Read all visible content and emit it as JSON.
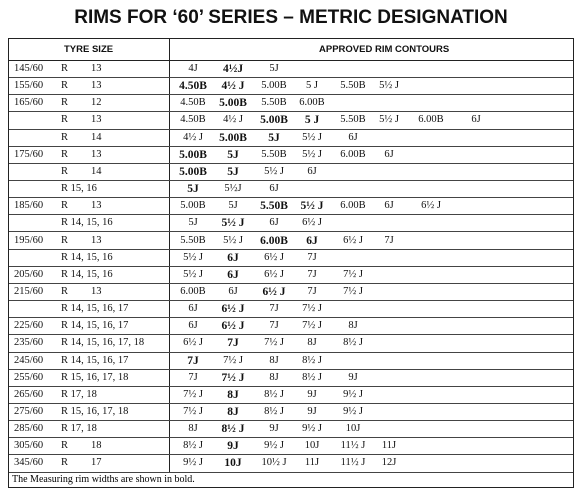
{
  "title": "RIMS FOR ‘60’ SERIES – METRIC DESIGNATION",
  "header": {
    "tyre_size": "TYRE SIZE",
    "rim_contours": "APPROVED RIM CONTOURS"
  },
  "rows": [
    {
      "size": "145/60",
      "r": "R",
      "dia": "13",
      "rims": [
        {
          "t": "4J",
          "b": false
        },
        {
          "t": "4½J",
          "b": true
        },
        {
          "t": "5J",
          "b": false
        }
      ]
    },
    {
      "size": "155/60",
      "r": "R",
      "dia": "13",
      "rims": [
        {
          "t": "4.50B",
          "b": true
        },
        {
          "t": "4½ J",
          "b": true
        },
        {
          "t": "5.00B",
          "b": false
        },
        {
          "t": "5 J",
          "b": false
        },
        {
          "t": "5.50B",
          "b": false
        },
        {
          "t": "5½ J",
          "b": false
        }
      ]
    },
    {
      "size": "165/60",
      "r": "R",
      "dia": "12",
      "rims": [
        {
          "t": "4.50B",
          "b": false
        },
        {
          "t": "5.00B",
          "b": true
        },
        {
          "t": "5.50B",
          "b": false
        },
        {
          "t": "6.00B",
          "b": false
        }
      ]
    },
    {
      "size": "",
      "r": "R",
      "dia": "13",
      "rims": [
        {
          "t": "4.50B",
          "b": false
        },
        {
          "t": "4½ J",
          "b": false
        },
        {
          "t": "5.00B",
          "b": true
        },
        {
          "t": "5 J",
          "b": true
        },
        {
          "t": "5.50B",
          "b": false
        },
        {
          "t": "5½ J",
          "b": false
        },
        {
          "t": "6.00B",
          "b": false
        },
        {
          "t": "6J",
          "b": false
        }
      ]
    },
    {
      "size": "",
      "r": "R",
      "dia": "14",
      "rims": [
        {
          "t": "4½ J",
          "b": false
        },
        {
          "t": "5.00B",
          "b": true
        },
        {
          "t": "5J",
          "b": true
        },
        {
          "t": "5½ J",
          "b": false
        },
        {
          "t": "6J",
          "b": false
        }
      ]
    },
    {
      "size": "175/60",
      "r": "R",
      "dia": "13",
      "rims": [
        {
          "t": "5.00B",
          "b": true
        },
        {
          "t": "5J",
          "b": true
        },
        {
          "t": "5.50B",
          "b": false
        },
        {
          "t": "5½ J",
          "b": false
        },
        {
          "t": "6.00B",
          "b": false
        },
        {
          "t": "6J",
          "b": false
        }
      ]
    },
    {
      "size": "",
      "r": "R",
      "dia": "14",
      "rims": [
        {
          "t": "5.00B",
          "b": true
        },
        {
          "t": "5J",
          "b": true
        },
        {
          "t": "5½ J",
          "b": false
        },
        {
          "t": "6J",
          "b": false
        }
      ]
    },
    {
      "size": "",
      "r": "R 15, 16",
      "dia": "",
      "rims": [
        {
          "t": "5J",
          "b": true
        },
        {
          "t": "5½J",
          "b": false
        },
        {
          "t": "6J",
          "b": false
        }
      ]
    },
    {
      "size": "185/60",
      "r": "R",
      "dia": "13",
      "rims": [
        {
          "t": "5.00B",
          "b": false
        },
        {
          "t": "5J",
          "b": false
        },
        {
          "t": "5.50B",
          "b": true
        },
        {
          "t": "5½ J",
          "b": true
        },
        {
          "t": "6.00B",
          "b": false
        },
        {
          "t": "6J",
          "b": false
        },
        {
          "t": "6½ J",
          "b": false
        }
      ]
    },
    {
      "size": "",
      "r": "R 14, 15, 16",
      "dia": "",
      "rims": [
        {
          "t": "5J",
          "b": false
        },
        {
          "t": "5½ J",
          "b": true
        },
        {
          "t": "6J",
          "b": false
        },
        {
          "t": "6½ J",
          "b": false
        }
      ]
    },
    {
      "size": "195/60",
      "r": "R",
      "dia": "13",
      "rims": [
        {
          "t": "5.50B",
          "b": false
        },
        {
          "t": "5½ J",
          "b": false
        },
        {
          "t": "6.00B",
          "b": true
        },
        {
          "t": "6J",
          "b": true
        },
        {
          "t": "6½ J",
          "b": false
        },
        {
          "t": "7J",
          "b": false
        }
      ]
    },
    {
      "size": "",
      "r": "R 14, 15, 16",
      "dia": "",
      "rims": [
        {
          "t": "5½ J",
          "b": false
        },
        {
          "t": "6J",
          "b": true
        },
        {
          "t": "6½ J",
          "b": false
        },
        {
          "t": "7J",
          "b": false
        }
      ]
    },
    {
      "size": "205/60",
      "r": "R 14, 15, 16",
      "dia": "",
      "rims": [
        {
          "t": "5½ J",
          "b": false
        },
        {
          "t": "6J",
          "b": true
        },
        {
          "t": "6½ J",
          "b": false
        },
        {
          "t": "7J",
          "b": false
        },
        {
          "t": "7½ J",
          "b": false
        }
      ]
    },
    {
      "size": "215/60",
      "r": "R",
      "dia": "13",
      "rims": [
        {
          "t": "6.00B",
          "b": false
        },
        {
          "t": "6J",
          "b": false
        },
        {
          "t": "6½ J",
          "b": true
        },
        {
          "t": "7J",
          "b": false
        },
        {
          "t": "7½ J",
          "b": false
        }
      ]
    },
    {
      "size": "",
      "r": "R 14, 15, 16, 17",
      "dia": "",
      "rims": [
        {
          "t": "6J",
          "b": false
        },
        {
          "t": "6½ J",
          "b": true
        },
        {
          "t": "7J",
          "b": false
        },
        {
          "t": "7½ J",
          "b": false
        }
      ]
    },
    {
      "size": "225/60",
      "r": "R 14, 15, 16, 17",
      "dia": "",
      "rims": [
        {
          "t": "6J",
          "b": false
        },
        {
          "t": "6½ J",
          "b": true
        },
        {
          "t": "7J",
          "b": false
        },
        {
          "t": "7½ J",
          "b": false
        },
        {
          "t": "8J",
          "b": false
        }
      ]
    },
    {
      "size": "235/60",
      "r": "R 14, 15, 16, 17, 18",
      "dia": "",
      "rims": [
        {
          "t": "6½ J",
          "b": false
        },
        {
          "t": "7J",
          "b": true
        },
        {
          "t": "7½ J",
          "b": false
        },
        {
          "t": "8J",
          "b": false
        },
        {
          "t": "8½ J",
          "b": false
        }
      ]
    },
    {
      "size": "245/60",
      "r": "R 14, 15, 16, 17",
      "dia": "",
      "rims": [
        {
          "t": "7J",
          "b": true
        },
        {
          "t": "7½ J",
          "b": false
        },
        {
          "t": "8J",
          "b": false
        },
        {
          "t": "8½ J",
          "b": false
        }
      ]
    },
    {
      "size": "255/60",
      "r": "R 15, 16, 17, 18",
      "dia": "",
      "rims": [
        {
          "t": "7J",
          "b": false
        },
        {
          "t": "7½ J",
          "b": true
        },
        {
          "t": "8J",
          "b": false
        },
        {
          "t": "8½ J",
          "b": false
        },
        {
          "t": "9J",
          "b": false
        }
      ]
    },
    {
      "size": "265/60",
      "r": "R 17, 18",
      "dia": "",
      "rims": [
        {
          "t": "7½ J",
          "b": false
        },
        {
          "t": "8J",
          "b": true
        },
        {
          "t": "8½ J",
          "b": false
        },
        {
          "t": "9J",
          "b": false
        },
        {
          "t": "9½ J",
          "b": false
        }
      ]
    },
    {
      "size": "275/60",
      "r": "R 15, 16, 17, 18",
      "dia": "",
      "rims": [
        {
          "t": "7½ J",
          "b": false
        },
        {
          "t": "8J",
          "b": true
        },
        {
          "t": "8½ J",
          "b": false
        },
        {
          "t": "9J",
          "b": false
        },
        {
          "t": "9½ J",
          "b": false
        }
      ]
    },
    {
      "size": "285/60",
      "r": "R 17, 18",
      "dia": "",
      "rims": [
        {
          "t": "8J",
          "b": false
        },
        {
          "t": "8½ J",
          "b": true
        },
        {
          "t": "9J",
          "b": false
        },
        {
          "t": "9½ J",
          "b": false
        },
        {
          "t": "10J",
          "b": false
        }
      ]
    },
    {
      "size": "305/60",
      "r": "R",
      "dia": "18",
      "rims": [
        {
          "t": "8½ J",
          "b": false
        },
        {
          "t": "9J",
          "b": true
        },
        {
          "t": "9½ J",
          "b": false
        },
        {
          "t": "10J",
          "b": false
        },
        {
          "t": "11½ J",
          "b": false
        },
        {
          "t": "11J",
          "b": false
        }
      ]
    },
    {
      "size": "345/60",
      "r": "R",
      "dia": "17",
      "rims": [
        {
          "t": "9½ J",
          "b": false
        },
        {
          "t": "10J",
          "b": true
        },
        {
          "t": "10½ J",
          "b": false
        },
        {
          "t": "11J",
          "b": false
        },
        {
          "t": "11½ J",
          "b": false
        },
        {
          "t": "12J",
          "b": false
        }
      ]
    }
  ],
  "footnote": "The Measuring rim widths are shown in bold."
}
